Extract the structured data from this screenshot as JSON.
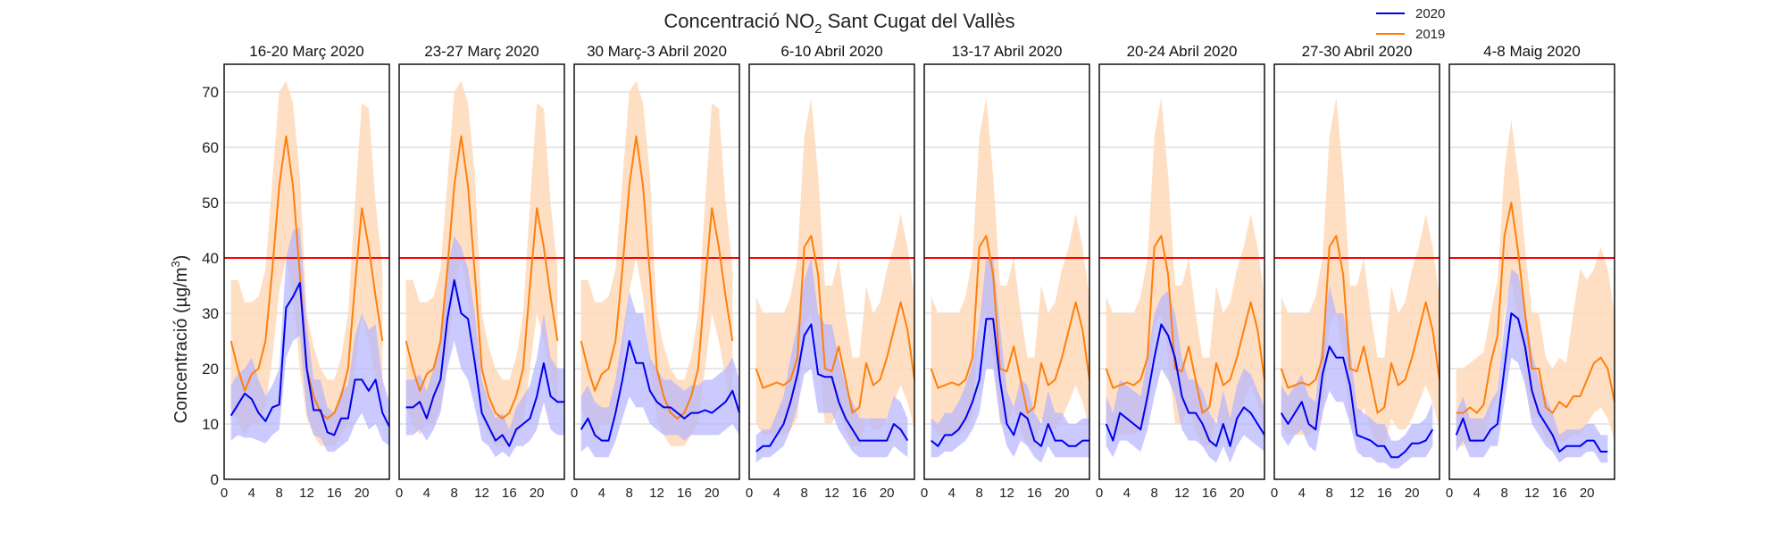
{
  "chart_data": {
    "type": "line",
    "title_main": "Concentració NO",
    "title_sub": "2",
    "title_rest": " Sant Cugat del Vallès",
    "ylabel_main": "Concentració (µg/m",
    "ylabel_sup": "3",
    "ylabel_end": ")",
    "ylim": [
      0,
      75
    ],
    "xlim": [
      0,
      24
    ],
    "yticks": [
      "0",
      "10",
      "20",
      "30",
      "40",
      "50",
      "60",
      "70"
    ],
    "xticks": [
      "0",
      "4",
      "8",
      "12",
      "16",
      "20"
    ],
    "grid": true,
    "legend_position": "top-right",
    "limit_line": {
      "value": 40,
      "color": "#ff0000"
    },
    "colors": {
      "s2020": "#0000ee",
      "s2019": "#ff7f0e",
      "band2020": "#b3b3ff",
      "band2019": "#ffd9b8"
    },
    "series_names": [
      "2020",
      "2019"
    ],
    "x": [
      1,
      2,
      3,
      4,
      5,
      6,
      7,
      8,
      9,
      10,
      11,
      12,
      13,
      14,
      15,
      16,
      17,
      18,
      19,
      20,
      21,
      22,
      23,
      24
    ],
    "panels": [
      {
        "title": "16-20 Març 2020",
        "s2020": [
          11.5,
          13.5,
          15.5,
          14.5,
          12,
          10.5,
          13,
          13.5,
          31,
          33,
          35.5,
          20,
          12.5,
          12.5,
          8.5,
          8,
          11,
          11,
          18,
          18,
          16,
          18,
          12,
          9.5
        ],
        "band2020_low": [
          7,
          8,
          7.5,
          7.5,
          7,
          6.5,
          8,
          9,
          22,
          25,
          26,
          12,
          8,
          7.5,
          5,
          5,
          6,
          7,
          10,
          12,
          9,
          10,
          7,
          6
        ],
        "band2020_high": [
          17,
          19,
          20,
          22,
          18,
          15,
          17,
          20,
          40,
          45,
          45.5,
          28,
          18,
          18,
          13,
          12,
          16,
          17,
          26,
          30,
          27,
          28,
          18,
          14
        ],
        "s2019": [
          25,
          20,
          16,
          19,
          20,
          25,
          38,
          53,
          62,
          53,
          37,
          20,
          15,
          12,
          11,
          12,
          15,
          20,
          35,
          49,
          42,
          33,
          25,
          null
        ],
        "band2019_low": [
          13,
          10,
          8,
          10,
          10,
          13,
          22,
          34,
          40,
          33,
          20,
          11,
          8,
          6,
          6,
          6,
          8,
          10,
          20,
          30,
          25,
          18,
          12,
          null
        ],
        "band2019_high": [
          36,
          36,
          32,
          32,
          33,
          38,
          54,
          70,
          72,
          68,
          55,
          30,
          24,
          20,
          18,
          18,
          22,
          30,
          50,
          68,
          67,
          50,
          38,
          null
        ]
      },
      {
        "title": "23-27 Març 2020",
        "s2020": [
          13,
          13,
          14,
          11,
          15,
          18,
          29,
          36,
          30,
          29,
          21,
          12,
          9.5,
          7,
          8,
          6,
          9,
          10,
          11,
          15,
          21,
          15,
          14,
          14
        ],
        "band2020_low": [
          8,
          8,
          9,
          7,
          9,
          12,
          20,
          25,
          20,
          18,
          13,
          7,
          6,
          4,
          5,
          4,
          6,
          6,
          7,
          9,
          14,
          9,
          8,
          8
        ],
        "band2020_high": [
          18,
          18,
          19,
          16,
          20,
          26,
          38,
          44,
          42,
          38,
          30,
          18,
          14,
          11,
          12,
          9,
          13,
          15,
          17,
          22,
          30,
          22,
          20,
          20
        ],
        "s2019": [
          25,
          20,
          16,
          19,
          20,
          25,
          38,
          53,
          62,
          53,
          37,
          20,
          15,
          12,
          11,
          12,
          15,
          20,
          35,
          49,
          42,
          33,
          25,
          null
        ],
        "band2019_low": [
          13,
          10,
          8,
          10,
          10,
          13,
          22,
          34,
          40,
          33,
          20,
          11,
          8,
          6,
          6,
          6,
          8,
          10,
          20,
          30,
          25,
          18,
          12,
          null
        ],
        "band2019_high": [
          36,
          36,
          32,
          32,
          33,
          38,
          54,
          70,
          72,
          68,
          55,
          30,
          24,
          20,
          18,
          18,
          22,
          30,
          50,
          68,
          67,
          50,
          38,
          null
        ]
      },
      {
        "title": "30 Març-3 Abril 2020",
        "s2020": [
          9,
          11,
          8,
          7,
          7,
          12,
          18,
          25,
          21,
          21,
          16,
          14,
          13,
          13,
          12,
          11,
          12,
          12,
          12.5,
          12,
          13,
          14,
          16,
          12
        ],
        "band2020_low": [
          5,
          6,
          4,
          4,
          4,
          7,
          11,
          15,
          13,
          13,
          10,
          9,
          8,
          8,
          8,
          7,
          8,
          8,
          8,
          8,
          8,
          9,
          10,
          8
        ],
        "band2020_high": [
          15,
          17,
          14,
          13,
          13,
          18,
          26,
          34,
          30,
          30,
          22,
          20,
          18,
          18,
          17,
          16,
          17,
          17,
          18,
          18,
          19,
          20,
          22,
          18
        ],
        "s2019": [
          25,
          20,
          16,
          19,
          20,
          25,
          38,
          53,
          62,
          53,
          37,
          20,
          15,
          12,
          11,
          12,
          15,
          20,
          35,
          49,
          42,
          33,
          25,
          null
        ],
        "band2019_low": [
          13,
          10,
          8,
          10,
          10,
          13,
          22,
          34,
          40,
          33,
          20,
          11,
          8,
          6,
          6,
          6,
          8,
          10,
          20,
          30,
          25,
          18,
          12,
          null
        ],
        "band2019_high": [
          36,
          36,
          32,
          32,
          33,
          38,
          54,
          70,
          72,
          68,
          55,
          30,
          24,
          20,
          18,
          18,
          22,
          30,
          50,
          68,
          67,
          50,
          38,
          null
        ]
      },
      {
        "title": "6-10 Abril 2020",
        "s2020": [
          5,
          6,
          6,
          8,
          10,
          14,
          19,
          26,
          28,
          19,
          18.5,
          18.5,
          14,
          11,
          9,
          7,
          7,
          7,
          7,
          7,
          10,
          9,
          7,
          null
        ],
        "band2020_low": [
          3,
          4,
          4,
          5,
          6,
          9,
          13,
          19,
          20,
          12,
          12,
          12,
          9,
          7,
          5,
          4,
          4,
          4,
          4,
          4,
          6,
          5,
          4,
          null
        ],
        "band2020_high": [
          8,
          9,
          9,
          12,
          15,
          22,
          28,
          36,
          40,
          30,
          28,
          28,
          22,
          17,
          14,
          11,
          11,
          11,
          11,
          11,
          15,
          14,
          11,
          null
        ],
        "s2019": [
          20,
          16.5,
          17,
          17.5,
          17,
          18,
          22,
          42,
          44,
          37,
          20,
          19.5,
          24,
          18,
          12,
          13,
          21,
          17,
          18,
          22,
          27,
          32,
          27,
          18
        ],
        "band2019_low": [
          10,
          8,
          8,
          8,
          8,
          9,
          11,
          28,
          30,
          22,
          10,
          10,
          13,
          9,
          6,
          6,
          11,
          9,
          9,
          11,
          14,
          17,
          14,
          9
        ],
        "band2019_high": [
          33,
          30,
          30,
          30,
          30,
          33,
          40,
          62,
          69,
          55,
          35,
          35,
          40,
          30,
          22,
          22,
          35,
          30,
          32,
          38,
          42,
          48,
          42,
          33
        ]
      },
      {
        "title": "13-17 Abril 2020",
        "s2020": [
          7,
          6,
          8,
          8,
          9,
          11,
          14,
          18,
          29,
          29,
          18,
          10,
          8,
          12,
          11,
          7,
          6,
          10,
          7,
          7,
          6,
          6,
          7,
          7
        ],
        "band2020_low": [
          4,
          4,
          5,
          5,
          6,
          7,
          9,
          12,
          20,
          20,
          11,
          6,
          4,
          7,
          6,
          4,
          3,
          6,
          4,
          4,
          4,
          4,
          4,
          4
        ],
        "band2020_high": [
          11,
          10,
          12,
          12,
          14,
          17,
          21,
          28,
          40,
          40,
          28,
          16,
          13,
          18,
          17,
          12,
          10,
          16,
          12,
          12,
          10,
          10,
          11,
          11
        ],
        "s2019": [
          20,
          16.5,
          17,
          17.5,
          17,
          18,
          22,
          42,
          44,
          37,
          20,
          19.5,
          24,
          18,
          12,
          13,
          21,
          17,
          18,
          22,
          27,
          32,
          27,
          18
        ],
        "band2019_low": [
          10,
          8,
          8,
          8,
          8,
          9,
          11,
          28,
          30,
          22,
          10,
          10,
          13,
          9,
          6,
          6,
          11,
          9,
          9,
          11,
          14,
          17,
          14,
          9
        ],
        "band2019_high": [
          33,
          30,
          30,
          30,
          30,
          33,
          40,
          62,
          69,
          55,
          35,
          35,
          40,
          30,
          22,
          22,
          35,
          30,
          32,
          38,
          42,
          48,
          42,
          33
        ]
      },
      {
        "title": "20-24 Abril 2020",
        "s2020": [
          10,
          7,
          12,
          11,
          10,
          9,
          15,
          22,
          28,
          26,
          22,
          15,
          12,
          12,
          10,
          7,
          6,
          10,
          6,
          11,
          13,
          12,
          10,
          8
        ],
        "band2020_low": [
          6,
          4,
          7,
          7,
          6,
          5,
          9,
          15,
          20,
          18,
          15,
          9,
          7,
          7,
          6,
          4,
          3,
          6,
          3,
          6,
          8,
          7,
          6,
          5
        ],
        "band2020_high": [
          15,
          12,
          18,
          17,
          16,
          15,
          22,
          30,
          33,
          34,
          30,
          22,
          18,
          18,
          16,
          12,
          10,
          16,
          11,
          17,
          20,
          19,
          16,
          13
        ],
        "s2019": [
          20,
          16.5,
          17,
          17.5,
          17,
          18,
          22,
          42,
          44,
          37,
          20,
          19.5,
          24,
          18,
          12,
          13,
          21,
          17,
          18,
          22,
          27,
          32,
          27,
          18
        ],
        "band2019_low": [
          10,
          8,
          8,
          8,
          8,
          9,
          11,
          28,
          30,
          22,
          10,
          10,
          13,
          9,
          6,
          6,
          11,
          9,
          9,
          11,
          14,
          17,
          14,
          9
        ],
        "band2019_high": [
          33,
          30,
          30,
          30,
          30,
          33,
          40,
          62,
          69,
          55,
          35,
          35,
          40,
          30,
          22,
          22,
          35,
          30,
          32,
          38,
          42,
          48,
          42,
          33
        ]
      },
      {
        "title": "27-30 Abril 2020",
        "s2020": [
          12,
          10,
          12,
          14,
          10,
          9,
          19,
          24,
          22,
          22,
          17,
          8,
          7.5,
          7,
          6,
          6,
          4,
          4,
          5,
          6.5,
          6.5,
          7,
          9,
          null
        ],
        "band2020_low": [
          8,
          6,
          8,
          9,
          6,
          5,
          12,
          16,
          14,
          14,
          10,
          5,
          4,
          4,
          3,
          3,
          2,
          2,
          3,
          4,
          4,
          4,
          6,
          null
        ],
        "band2020_high": [
          17,
          15,
          17,
          19,
          15,
          14,
          26,
          35,
          30,
          30,
          24,
          13,
          12,
          11,
          10,
          10,
          7,
          7,
          8,
          10,
          10,
          11,
          14,
          null
        ],
        "s2019": [
          20,
          16.5,
          17,
          17.5,
          17,
          18,
          22,
          42,
          44,
          37,
          20,
          19.5,
          24,
          18,
          12,
          13,
          21,
          17,
          18,
          22,
          27,
          32,
          27,
          18
        ],
        "band2019_low": [
          10,
          8,
          8,
          8,
          8,
          9,
          11,
          28,
          30,
          22,
          10,
          10,
          13,
          9,
          6,
          6,
          11,
          9,
          9,
          11,
          14,
          17,
          14,
          9
        ],
        "band2019_high": [
          33,
          30,
          30,
          30,
          30,
          33,
          40,
          62,
          69,
          55,
          35,
          35,
          40,
          30,
          22,
          22,
          35,
          30,
          32,
          38,
          42,
          48,
          42,
          33
        ]
      },
      {
        "title": "4-8 Maig 2020",
        "s2020": [
          8,
          11,
          7,
          7,
          7,
          9,
          10,
          20,
          30,
          29,
          24,
          16,
          12,
          10,
          8,
          5,
          6,
          6,
          6,
          7,
          7,
          5,
          5,
          null
        ],
        "band2020_low": [
          5,
          7,
          4,
          4,
          4,
          6,
          6,
          14,
          22,
          21,
          17,
          10,
          8,
          6,
          5,
          3,
          4,
          4,
          4,
          5,
          5,
          3,
          3,
          null
        ],
        "band2020_high": [
          12,
          15,
          11,
          11,
          11,
          14,
          16,
          28,
          38,
          37,
          31,
          23,
          18,
          15,
          12,
          8,
          9,
          9,
          9,
          10,
          10,
          8,
          8,
          null
        ],
        "s2019": [
          12,
          12,
          13,
          12,
          13.5,
          21,
          26,
          44,
          50,
          41,
          30,
          20,
          20,
          13,
          12,
          14,
          13,
          15,
          15,
          18,
          21,
          22,
          20,
          14
        ],
        "band2019_low": [
          6,
          6,
          7,
          6,
          7,
          12,
          15,
          30,
          36,
          28,
          18,
          11,
          11,
          7,
          6,
          7,
          7,
          8,
          8,
          10,
          12,
          13,
          11,
          7
        ],
        "band2019_high": [
          20,
          20,
          21,
          22,
          23,
          30,
          36,
          56,
          65,
          55,
          42,
          30,
          30,
          22,
          20,
          22,
          21,
          30,
          38,
          36,
          38,
          42,
          38,
          30
        ]
      }
    ]
  }
}
